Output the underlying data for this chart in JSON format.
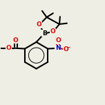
{
  "bg_color": "#eeeee4",
  "bond_color": "#000000",
  "bond_width": 1.5,
  "atom_colors": {
    "O": "#dd0000",
    "N": "#0000cc",
    "B": "#000000",
    "C": "#000000"
  }
}
